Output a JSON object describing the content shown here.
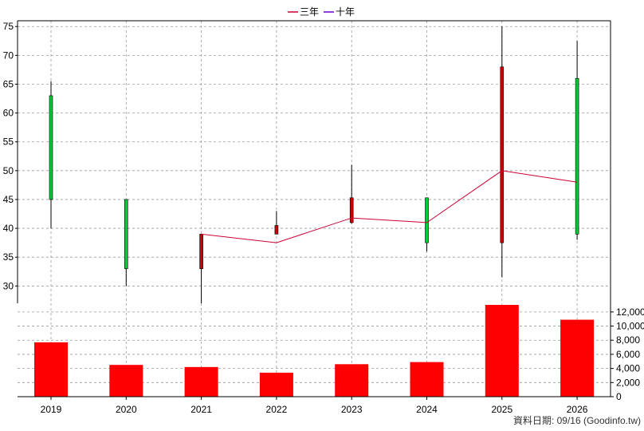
{
  "chart_data": {
    "type": "candlestick",
    "categories": [
      "2019",
      "2020",
      "2021",
      "2022",
      "2023",
      "2024",
      "2025",
      "2026"
    ],
    "candles": [
      {
        "year": "2019",
        "open": 45.0,
        "close": 63.0,
        "high": 65.5,
        "low": 40.0
      },
      {
        "year": "2020",
        "open": 33.0,
        "close": 45.0,
        "high": 45.0,
        "low": 30.0
      },
      {
        "year": "2021",
        "open": 39.0,
        "close": 33.0,
        "high": 39.0,
        "low": 27.0
      },
      {
        "year": "2022",
        "open": 40.5,
        "close": 39.0,
        "high": 43.0,
        "low": 39.0
      },
      {
        "year": "2023",
        "open": 45.3,
        "close": 41.0,
        "high": 51.0,
        "low": 40.8
      },
      {
        "year": "2024",
        "open": 37.5,
        "close": 45.3,
        "high": 45.3,
        "low": 36.0
      },
      {
        "year": "2025",
        "open": 68.0,
        "close": 37.5,
        "high": 75.0,
        "low": 31.5
      },
      {
        "year": "2026",
        "open": 39.0,
        "close": 66.0,
        "high": 72.5,
        "low": 38.0
      }
    ],
    "series": [
      {
        "name": "三年",
        "color": "#cc0033",
        "values": [
          null,
          null,
          39.0,
          37.5,
          41.8,
          41.0,
          50.0,
          48.0
        ]
      },
      {
        "name": "十年",
        "color": "#6600cc",
        "values": [
          null,
          null,
          null,
          null,
          null,
          null,
          null,
          null
        ]
      }
    ],
    "volume": [
      7700,
      4500,
      4200,
      3400,
      4600,
      4900,
      13000,
      10900
    ],
    "price_axis": {
      "min": 27,
      "max": 76,
      "ticks": [
        30,
        35,
        40,
        45,
        50,
        55,
        60,
        65,
        70,
        75
      ]
    },
    "volume_axis": {
      "min": 0,
      "max": 13000,
      "ticks": [
        0,
        2000,
        4000,
        6000,
        8000,
        10000,
        12000
      ],
      "tick_labels": [
        "0",
        "2,000",
        "4,000",
        "6,000",
        "8,000",
        "10,000",
        "12,000"
      ]
    },
    "legend_position": "top-center",
    "grid": true,
    "colors": {
      "up": "#00cc33",
      "down": "#cc0000",
      "volume": "#ff0000",
      "wick": "#000000"
    },
    "footer": "資料日期: 09/16  (Goodinfo.tw)"
  }
}
